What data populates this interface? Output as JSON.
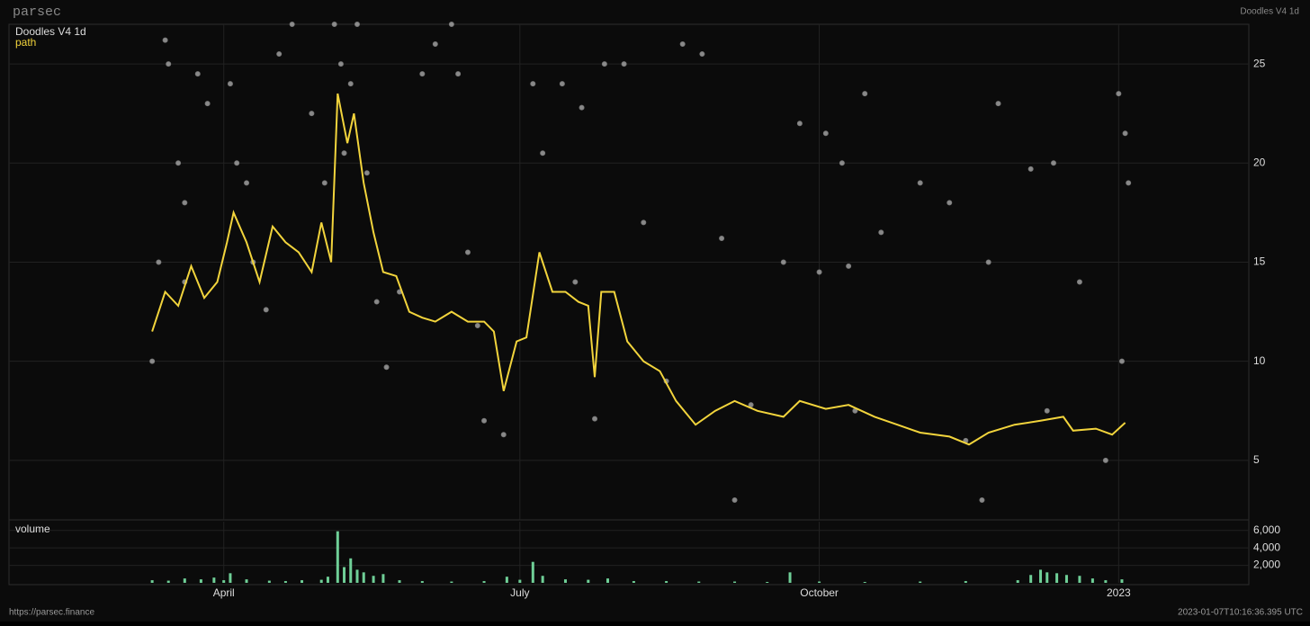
{
  "brand": "parsec",
  "header_title": "Doodles V4 1d",
  "footer_url": "https://parsec.finance",
  "timestamp": "2023-01-07T10:16:36.395 UTC",
  "chart_data": [
    {
      "type": "scatter",
      "title": "Doodles V4 1d",
      "color": "#b4b4b4",
      "x": [
        "2022-03-10",
        "2022-03-12",
        "2022-03-14",
        "2022-03-15",
        "2022-03-18",
        "2022-03-20",
        "2022-03-24",
        "2022-03-27",
        "2022-04-03",
        "2022-04-05",
        "2022-04-08",
        "2022-04-14",
        "2022-04-18",
        "2022-04-22",
        "2022-04-28",
        "2022-05-02",
        "2022-05-05",
        "2022-05-07",
        "2022-05-08",
        "2022-05-10",
        "2022-05-12",
        "2022-05-15",
        "2022-05-18",
        "2022-05-21",
        "2022-06-01",
        "2022-06-05",
        "2022-06-10",
        "2022-06-12",
        "2022-06-15",
        "2022-06-20",
        "2022-06-26",
        "2022-07-05",
        "2022-07-08",
        "2022-07-14",
        "2022-07-20",
        "2022-07-24",
        "2022-07-27",
        "2022-08-02",
        "2022-08-08",
        "2022-08-20",
        "2022-08-26",
        "2022-09-01",
        "2022-09-05",
        "2022-09-20",
        "2022-09-25",
        "2022-10-01",
        "2022-10-03",
        "2022-10-08",
        "2022-10-10",
        "2022-10-15",
        "2022-10-20",
        "2022-11-01",
        "2022-11-10",
        "2022-11-20",
        "2022-11-22",
        "2022-11-25",
        "2022-12-05",
        "2022-12-12",
        "2022-12-20",
        "2023-01-01",
        "2023-01-03",
        "2023-01-04",
        "2022-03-20",
        "2022-04-10",
        "2022-05-25",
        "2022-06-18",
        "2022-07-18",
        "2022-08-15",
        "2022-09-10",
        "2022-10-12",
        "2022-11-15",
        "2022-12-10",
        "2022-12-28",
        "2023-01-02"
      ],
      "values": [
        10,
        15,
        26.2,
        25,
        20,
        18,
        24.5,
        23,
        24,
        20,
        19,
        12.6,
        25.5,
        27,
        22.5,
        19,
        27,
        25,
        20.5,
        24,
        27,
        19.5,
        13,
        9.7,
        24.5,
        26,
        27,
        24.5,
        15.5,
        7,
        6.3,
        24,
        20.5,
        24,
        22.8,
        7.1,
        25,
        25,
        17,
        26,
        25.5,
        16.2,
        3,
        15,
        22,
        14.5,
        21.5,
        20,
        14.8,
        23.5,
        16.5,
        19,
        18,
        3,
        15,
        23,
        19.7,
        20,
        14,
        23.5,
        21.5,
        19,
        14,
        15,
        13.5,
        11.8,
        14,
        9,
        7.8,
        7.5,
        6,
        7.5,
        5,
        10
      ],
      "series": [
        {
          "name": "path",
          "color": "#f2d43c",
          "x": [
            "2022-03-10",
            "2022-03-14",
            "2022-03-18",
            "2022-03-22",
            "2022-03-26",
            "2022-03-30",
            "2022-04-02",
            "2022-04-04",
            "2022-04-08",
            "2022-04-12",
            "2022-04-16",
            "2022-04-20",
            "2022-04-24",
            "2022-04-28",
            "2022-05-01",
            "2022-05-04",
            "2022-05-06",
            "2022-05-09",
            "2022-05-11",
            "2022-05-14",
            "2022-05-17",
            "2022-05-20",
            "2022-05-24",
            "2022-05-28",
            "2022-06-01",
            "2022-06-05",
            "2022-06-10",
            "2022-06-15",
            "2022-06-20",
            "2022-06-23",
            "2022-06-26",
            "2022-06-30",
            "2022-07-03",
            "2022-07-07",
            "2022-07-11",
            "2022-07-15",
            "2022-07-19",
            "2022-07-22",
            "2022-07-24",
            "2022-07-26",
            "2022-07-30",
            "2022-08-03",
            "2022-08-08",
            "2022-08-13",
            "2022-08-18",
            "2022-08-24",
            "2022-08-30",
            "2022-09-05",
            "2022-09-12",
            "2022-09-20",
            "2022-09-25",
            "2022-10-03",
            "2022-10-10",
            "2022-10-18",
            "2022-10-25",
            "2022-11-01",
            "2022-11-10",
            "2022-11-16",
            "2022-11-22",
            "2022-11-30",
            "2022-12-08",
            "2022-12-15",
            "2022-12-18",
            "2022-12-25",
            "2022-12-30",
            "2023-01-03"
          ],
          "values": [
            11.5,
            13.5,
            12.8,
            14.8,
            13.2,
            14,
            16,
            17.5,
            16,
            14,
            16.8,
            16,
            15.5,
            14.5,
            17,
            15,
            23.5,
            21,
            22.5,
            19,
            16.5,
            14.5,
            14.3,
            12.5,
            12.2,
            12,
            12.5,
            12,
            12,
            11.5,
            8.5,
            11,
            11.2,
            15.5,
            13.5,
            13.5,
            13,
            12.8,
            9.2,
            13.5,
            13.5,
            11,
            10,
            9.5,
            8,
            6.8,
            7.5,
            8,
            7.5,
            7.2,
            8,
            7.6,
            7.8,
            7.2,
            6.8,
            6.4,
            6.2,
            5.8,
            6.4,
            6.8,
            7,
            7.2,
            6.5,
            6.6,
            6.3,
            6.9
          ]
        }
      ],
      "xlim": [
        "2022-01-25",
        "2023-02-10"
      ],
      "xticks": [
        {
          "value": "2022-04-01",
          "label": "April"
        },
        {
          "value": "2022-07-01",
          "label": "July"
        },
        {
          "value": "2022-10-01",
          "label": "October"
        },
        {
          "value": "2023-01-01",
          "label": "2023"
        }
      ],
      "ylim": [
        2,
        27
      ],
      "yticks": [
        5,
        10,
        15,
        20,
        25
      ],
      "grid": true
    },
    {
      "type": "bar",
      "title": "volume",
      "color": "#6fcf97",
      "x": [
        "2022-03-10",
        "2022-03-15",
        "2022-03-20",
        "2022-03-25",
        "2022-03-29",
        "2022-04-01",
        "2022-04-03",
        "2022-04-08",
        "2022-04-15",
        "2022-04-20",
        "2022-04-25",
        "2022-05-01",
        "2022-05-03",
        "2022-05-06",
        "2022-05-08",
        "2022-05-10",
        "2022-05-12",
        "2022-05-14",
        "2022-05-17",
        "2022-05-20",
        "2022-05-25",
        "2022-06-01",
        "2022-06-10",
        "2022-06-20",
        "2022-06-27",
        "2022-07-01",
        "2022-07-05",
        "2022-07-08",
        "2022-07-15",
        "2022-07-22",
        "2022-07-28",
        "2022-08-05",
        "2022-08-15",
        "2022-08-25",
        "2022-09-05",
        "2022-09-15",
        "2022-09-22",
        "2022-10-01",
        "2022-10-15",
        "2022-11-01",
        "2022-11-15",
        "2022-12-01",
        "2022-12-05",
        "2022-12-08",
        "2022-12-10",
        "2022-12-13",
        "2022-12-16",
        "2022-12-20",
        "2022-12-24",
        "2022-12-28",
        "2023-01-02"
      ],
      "values": [
        300,
        250,
        500,
        400,
        600,
        300,
        1100,
        400,
        250,
        200,
        300,
        350,
        700,
        5900,
        1800,
        2800,
        1500,
        1200,
        800,
        1000,
        300,
        200,
        150,
        200,
        700,
        350,
        2400,
        800,
        400,
        350,
        500,
        200,
        200,
        150,
        150,
        100,
        1200,
        150,
        100,
        150,
        200,
        300,
        900,
        1500,
        1200,
        1100,
        900,
        800,
        500,
        300,
        400
      ],
      "ylim": [
        0,
        7000
      ],
      "yticks": [
        {
          "value": 2000,
          "label": "2,000"
        },
        {
          "value": 4000,
          "label": "4,000"
        },
        {
          "value": 6000,
          "label": "6,000"
        }
      ],
      "grid": true
    }
  ]
}
